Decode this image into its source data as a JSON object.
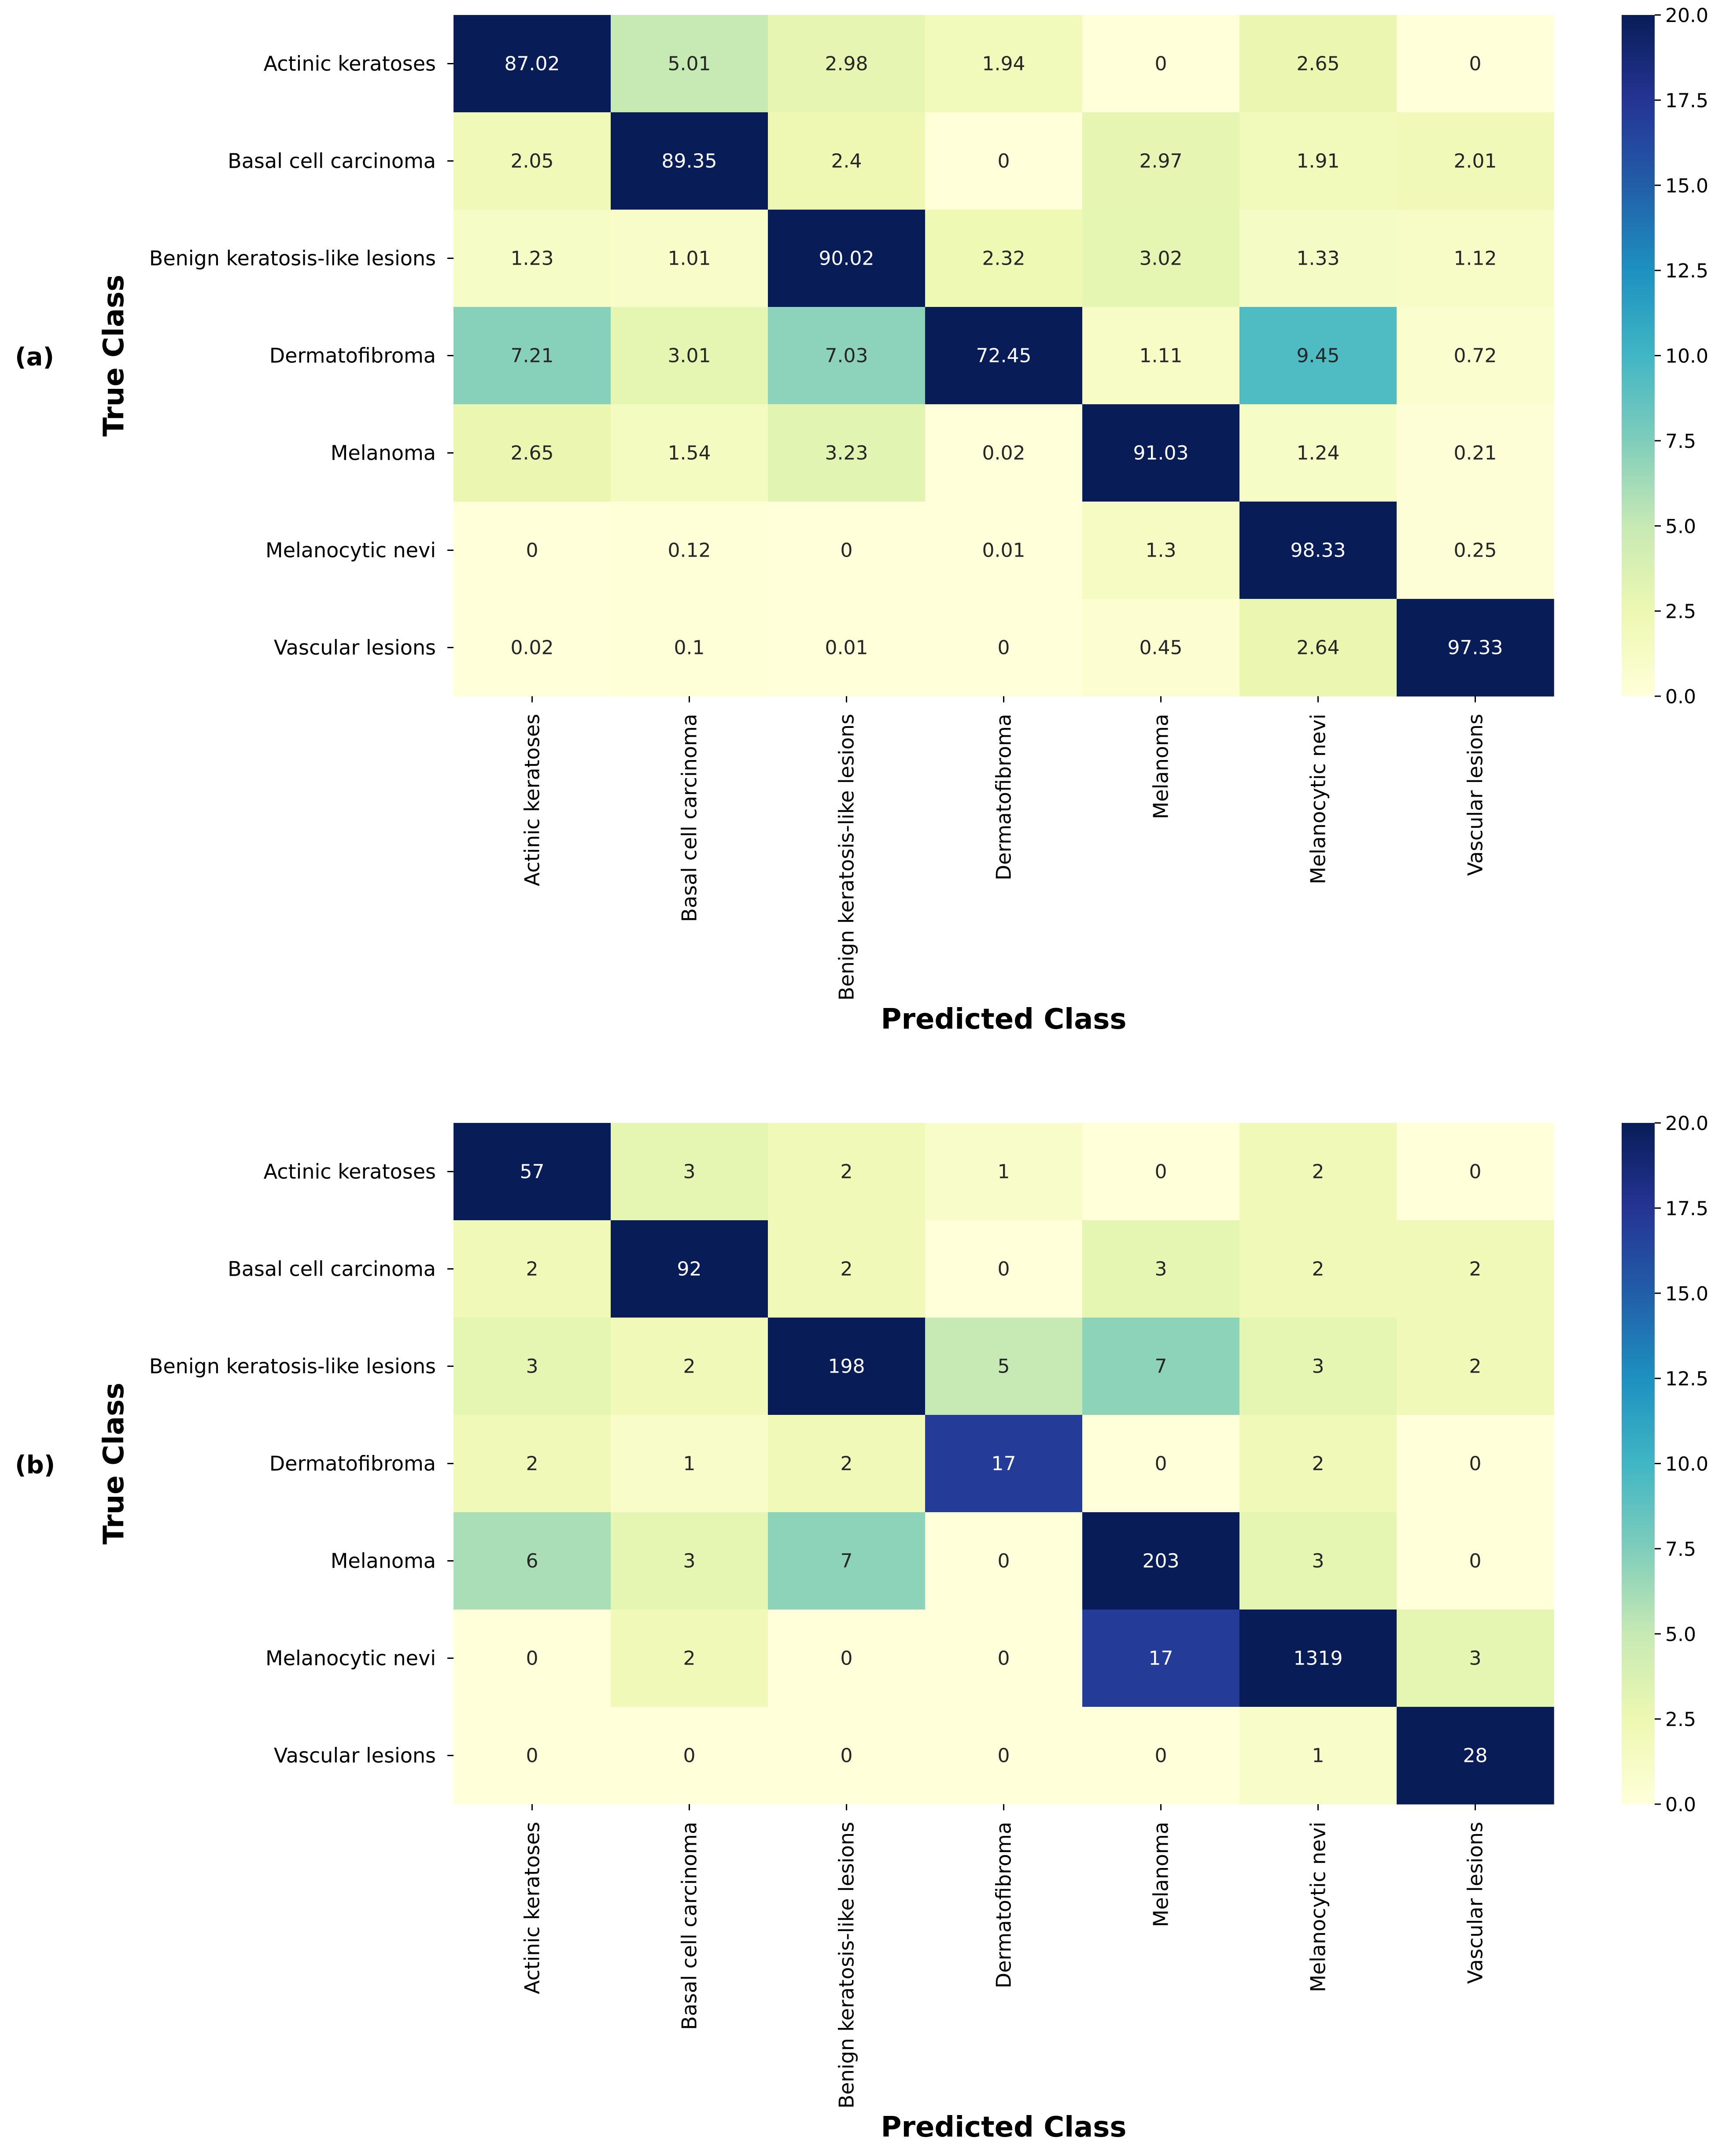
{
  "figure_labels": [
    "(a)",
    "(b)"
  ],
  "chart_data": [
    {
      "type": "heatmap",
      "panel_label": "(a)",
      "xlabel": "Predicted Class",
      "ylabel": "True Class",
      "row_labels": [
        "Actinic keratoses",
        "Basal cell carcinoma",
        "Benign keratosis-like lesions",
        "Dermatofibroma",
        "Melanoma",
        "Melanocytic nevi",
        "Vascular lesions"
      ],
      "col_labels": [
        "Actinic keratoses",
        "Basal cell carcinoma",
        "Benign keratosis-like lesions",
        "Dermatofibroma",
        "Melanoma",
        "Melanocytic nevi",
        "Vascular lesions"
      ],
      "matrix": [
        [
          "87.02",
          "5.01",
          "2.98",
          "1.94",
          "0",
          "2.65",
          "0"
        ],
        [
          "2.05",
          "89.35",
          "2.4",
          "0",
          "2.97",
          "1.91",
          "2.01"
        ],
        [
          "1.23",
          "1.01",
          "90.02",
          "2.32",
          "3.02",
          "1.33",
          "1.12"
        ],
        [
          "7.21",
          "3.01",
          "7.03",
          "72.45",
          "1.11",
          "9.45",
          "0.72"
        ],
        [
          "2.65",
          "1.54",
          "3.23",
          "0.02",
          "91.03",
          "1.24",
          "0.21"
        ],
        [
          "0",
          "0.12",
          "0",
          "0.01",
          "1.3",
          "98.33",
          "0.25"
        ],
        [
          "0.02",
          "0.1",
          "0.01",
          "0",
          "0.45",
          "2.64",
          "97.33"
        ]
      ],
      "colorbar": {
        "vmin": 0,
        "vmax": 20,
        "ticks": [
          "0.0",
          "2.5",
          "5.0",
          "7.5",
          "10.0",
          "12.5",
          "15.0",
          "17.5",
          "20.0"
        ],
        "colormap": "YlGnBu"
      }
    },
    {
      "type": "heatmap",
      "panel_label": "(b)",
      "xlabel": "Predicted Class",
      "ylabel": "True Class",
      "row_labels": [
        "Actinic keratoses",
        "Basal cell carcinoma",
        "Benign keratosis-like lesions",
        "Dermatofibroma",
        "Melanoma",
        "Melanocytic nevi",
        "Vascular lesions"
      ],
      "col_labels": [
        "Actinic keratoses",
        "Basal cell carcinoma",
        "Benign keratosis-like lesions",
        "Dermatofibroma",
        "Melanoma",
        "Melanocytic nevi",
        "Vascular lesions"
      ],
      "matrix": [
        [
          "57",
          "3",
          "2",
          "1",
          "0",
          "2",
          "0"
        ],
        [
          "2",
          "92",
          "2",
          "0",
          "3",
          "2",
          "2"
        ],
        [
          "3",
          "2",
          "198",
          "5",
          "7",
          "3",
          "2"
        ],
        [
          "2",
          "1",
          "2",
          "17",
          "0",
          "2",
          "0"
        ],
        [
          "6",
          "3",
          "7",
          "0",
          "203",
          "3",
          "0"
        ],
        [
          "0",
          "2",
          "0",
          "0",
          "17",
          "1319",
          "3"
        ],
        [
          "0",
          "0",
          "0",
          "0",
          "0",
          "1",
          "28"
        ]
      ],
      "colorbar": {
        "vmin": 0,
        "vmax": 20,
        "ticks": [
          "0.0",
          "2.5",
          "5.0",
          "7.5",
          "10.0",
          "12.5",
          "15.0",
          "17.5",
          "20.0"
        ],
        "colormap": "YlGnBu"
      }
    }
  ]
}
